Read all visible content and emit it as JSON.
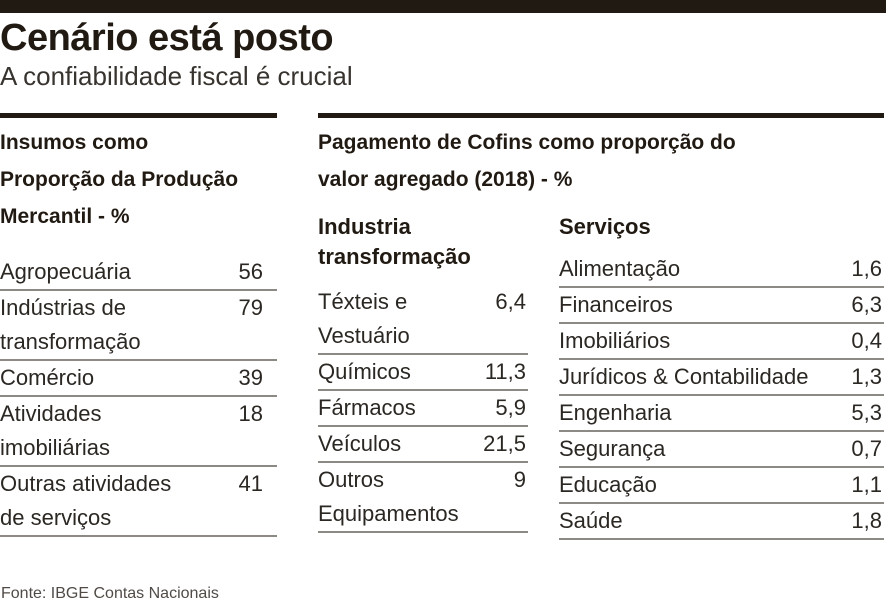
{
  "header": {
    "title": "Cenário está posto",
    "subtitle": "A confiabilidade fiscal é crucial"
  },
  "left_table": {
    "title": "Insumos como\nProporção da Produção\nMercantil - %",
    "rows": [
      {
        "label": "Agropecuária",
        "value": "56"
      },
      {
        "label": "Indústrias de\ntransformação",
        "value": "79"
      },
      {
        "label": "Comércio",
        "value": "39"
      },
      {
        "label": "Atividades\nimobiliárias",
        "value": "18"
      },
      {
        "label": "Outras atividades\nde serviços",
        "value": "41"
      }
    ]
  },
  "right_section": {
    "title": "Pagamento de Cofins como proporção do\nvalor agregado (2018) - %",
    "industry_table": {
      "title": "Industria\ntransformação",
      "rows": [
        {
          "label": "Téxteis e\nVestuário",
          "value": "6,4"
        },
        {
          "label": "Químicos",
          "value": "11,3"
        },
        {
          "label": "Fármacos",
          "value": "5,9"
        },
        {
          "label": "Veículos",
          "value": "21,5"
        },
        {
          "label": "Outros\nEquipamentos",
          "value": "9"
        }
      ]
    },
    "services_table": {
      "title": "Serviços",
      "rows": [
        {
          "label": "Alimentação",
          "value": "1,6"
        },
        {
          "label": "Financeiros",
          "value": "6,3"
        },
        {
          "label": "Imobiliários",
          "value": "0,4"
        },
        {
          "label": "Jurídicos & Contabilidade",
          "value": "1,3"
        },
        {
          "label": "Engenharia",
          "value": "5,3"
        },
        {
          "label": "Segurança",
          "value": "0,7"
        },
        {
          "label": "Educação",
          "value": "1,1"
        },
        {
          "label": "Saúde",
          "value": "1,8"
        }
      ]
    }
  },
  "footer": {
    "source": "Fonte: IBGE Contas Nacionais"
  },
  "colors": {
    "ink": "#211a13",
    "hairline": "#8d8a86",
    "source_text": "#504b47",
    "background": "#ffffff"
  },
  "chart_data": [
    {
      "type": "table",
      "title": "Insumos como Proporção da Produção Mercantil - %",
      "columns": [
        "Setor",
        "%"
      ],
      "rows": [
        [
          "Agropecuária",
          56
        ],
        [
          "Indústrias de transformação",
          79
        ],
        [
          "Comércio",
          39
        ],
        [
          "Atividades imobiliárias",
          18
        ],
        [
          "Outras atividades de serviços",
          41
        ]
      ]
    },
    {
      "type": "table",
      "title": "Pagamento de Cofins como proporção do valor agregado (2018) - % — Industria transformação",
      "columns": [
        "Setor",
        "%"
      ],
      "rows": [
        [
          "Téxteis e Vestuário",
          6.4
        ],
        [
          "Químicos",
          11.3
        ],
        [
          "Fármacos",
          5.9
        ],
        [
          "Veículos",
          21.5
        ],
        [
          "Outros Equipamentos",
          9
        ]
      ]
    },
    {
      "type": "table",
      "title": "Pagamento de Cofins como proporção do valor agregado (2018) - % — Serviços",
      "columns": [
        "Setor",
        "%"
      ],
      "rows": [
        [
          "Alimentação",
          1.6
        ],
        [
          "Financeiros",
          6.3
        ],
        [
          "Imobiliários",
          0.4
        ],
        [
          "Jurídicos & Contabilidade",
          1.3
        ],
        [
          "Engenharia",
          5.3
        ],
        [
          "Segurança",
          0.7
        ],
        [
          "Educação",
          1.1
        ],
        [
          "Saúde",
          1.8
        ]
      ]
    }
  ]
}
